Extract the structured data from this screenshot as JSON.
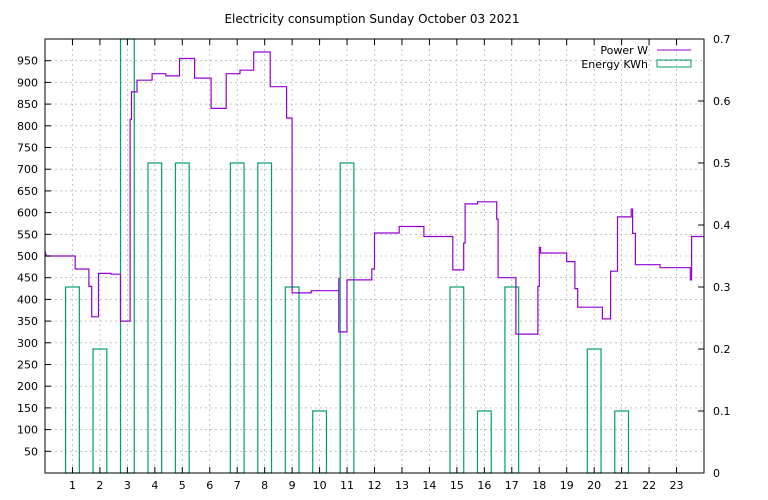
{
  "chart_data": {
    "type": "line",
    "title": "Electricity consumption Sunday October 03 2021",
    "x_range": [
      0,
      24
    ],
    "x_ticks": [
      1,
      2,
      3,
      4,
      5,
      6,
      7,
      8,
      9,
      10,
      11,
      12,
      13,
      14,
      15,
      16,
      17,
      18,
      19,
      20,
      21,
      22,
      23
    ],
    "y_left_range": [
      0,
      1000
    ],
    "y_left_ticks": [
      50,
      100,
      150,
      200,
      250,
      300,
      350,
      400,
      450,
      500,
      550,
      600,
      650,
      700,
      750,
      800,
      850,
      900,
      950
    ],
    "y_right_range": [
      0,
      0.7
    ],
    "y_right_ticks": [
      0,
      0.1,
      0.2,
      0.3,
      0.4,
      0.5,
      0.6,
      0.7
    ],
    "grid": true,
    "legend_position": "top-right",
    "colors": {
      "power": "#9400d3",
      "energy": "#009e73"
    },
    "series": [
      {
        "name": "Power W",
        "axis": "left",
        "style": "step",
        "points": [
          [
            0.0,
            510
          ],
          [
            0.05,
            500
          ],
          [
            1.1,
            500
          ],
          [
            1.1,
            470
          ],
          [
            1.6,
            470
          ],
          [
            1.6,
            430
          ],
          [
            1.7,
            430
          ],
          [
            1.7,
            360
          ],
          [
            1.95,
            360
          ],
          [
            1.95,
            460
          ],
          [
            2.4,
            460
          ],
          [
            2.4,
            458
          ],
          [
            2.75,
            458
          ],
          [
            2.75,
            350
          ],
          [
            3.1,
            350
          ],
          [
            3.1,
            815
          ],
          [
            3.15,
            815
          ],
          [
            3.15,
            878
          ],
          [
            3.35,
            878
          ],
          [
            3.35,
            905
          ],
          [
            3.9,
            905
          ],
          [
            3.9,
            920
          ],
          [
            4.4,
            920
          ],
          [
            4.4,
            915
          ],
          [
            4.9,
            915
          ],
          [
            4.9,
            955
          ],
          [
            5.45,
            955
          ],
          [
            5.45,
            910
          ],
          [
            6.05,
            910
          ],
          [
            6.05,
            840
          ],
          [
            6.6,
            840
          ],
          [
            6.6,
            920
          ],
          [
            7.1,
            920
          ],
          [
            7.1,
            928
          ],
          [
            7.6,
            928
          ],
          [
            7.6,
            970
          ],
          [
            8.2,
            970
          ],
          [
            8.2,
            890
          ],
          [
            8.8,
            890
          ],
          [
            8.8,
            818
          ],
          [
            9.0,
            818
          ],
          [
            9.0,
            415
          ],
          [
            9.7,
            415
          ],
          [
            9.7,
            420
          ],
          [
            10.7,
            420
          ],
          [
            10.7,
            450
          ],
          [
            10.7,
            325
          ],
          [
            11.0,
            325
          ],
          [
            11.0,
            445
          ],
          [
            11.9,
            445
          ],
          [
            11.9,
            470
          ],
          [
            12.0,
            470
          ],
          [
            12.0,
            553
          ],
          [
            12.9,
            553
          ],
          [
            12.9,
            568
          ],
          [
            13.8,
            568
          ],
          [
            13.8,
            545
          ],
          [
            14.85,
            545
          ],
          [
            14.85,
            468
          ],
          [
            15.25,
            468
          ],
          [
            15.25,
            530
          ],
          [
            15.3,
            530
          ],
          [
            15.3,
            620
          ],
          [
            15.75,
            620
          ],
          [
            15.75,
            625
          ],
          [
            16.45,
            625
          ],
          [
            16.45,
            585
          ],
          [
            16.5,
            585
          ],
          [
            16.5,
            450
          ],
          [
            17.15,
            450
          ],
          [
            17.15,
            320
          ],
          [
            17.95,
            320
          ],
          [
            17.95,
            430
          ],
          [
            18.0,
            430
          ],
          [
            18.0,
            520
          ],
          [
            18.05,
            520
          ],
          [
            18.05,
            507
          ],
          [
            19.0,
            507
          ],
          [
            19.0,
            487
          ],
          [
            19.3,
            487
          ],
          [
            19.3,
            425
          ],
          [
            19.4,
            425
          ],
          [
            19.4,
            382
          ],
          [
            20.3,
            382
          ],
          [
            20.3,
            355
          ],
          [
            20.6,
            355
          ],
          [
            20.6,
            465
          ],
          [
            20.85,
            465
          ],
          [
            20.85,
            590
          ],
          [
            21.35,
            590
          ],
          [
            21.35,
            608
          ],
          [
            21.4,
            608
          ],
          [
            21.4,
            552
          ],
          [
            21.5,
            552
          ],
          [
            21.5,
            480
          ],
          [
            22.4,
            480
          ],
          [
            22.4,
            473
          ],
          [
            23.5,
            473
          ],
          [
            23.5,
            445
          ],
          [
            23.55,
            445
          ],
          [
            23.55,
            545
          ],
          [
            24.0,
            545
          ]
        ]
      },
      {
        "name": "Energy KWh",
        "axis": "right",
        "style": "boxes",
        "box_width": 0.5,
        "points": [
          [
            1,
            0.3
          ],
          [
            2,
            0.2
          ],
          [
            3,
            0.7
          ],
          [
            4,
            0.5
          ],
          [
            5,
            0.5
          ],
          [
            7,
            0.5
          ],
          [
            8,
            0.5
          ],
          [
            9,
            0.3
          ],
          [
            10,
            0.1
          ],
          [
            11,
            0.5
          ],
          [
            15,
            0.3
          ],
          [
            16,
            0.1
          ],
          [
            17,
            0.3
          ],
          [
            20,
            0.2
          ],
          [
            21,
            0.1
          ]
        ]
      }
    ]
  }
}
